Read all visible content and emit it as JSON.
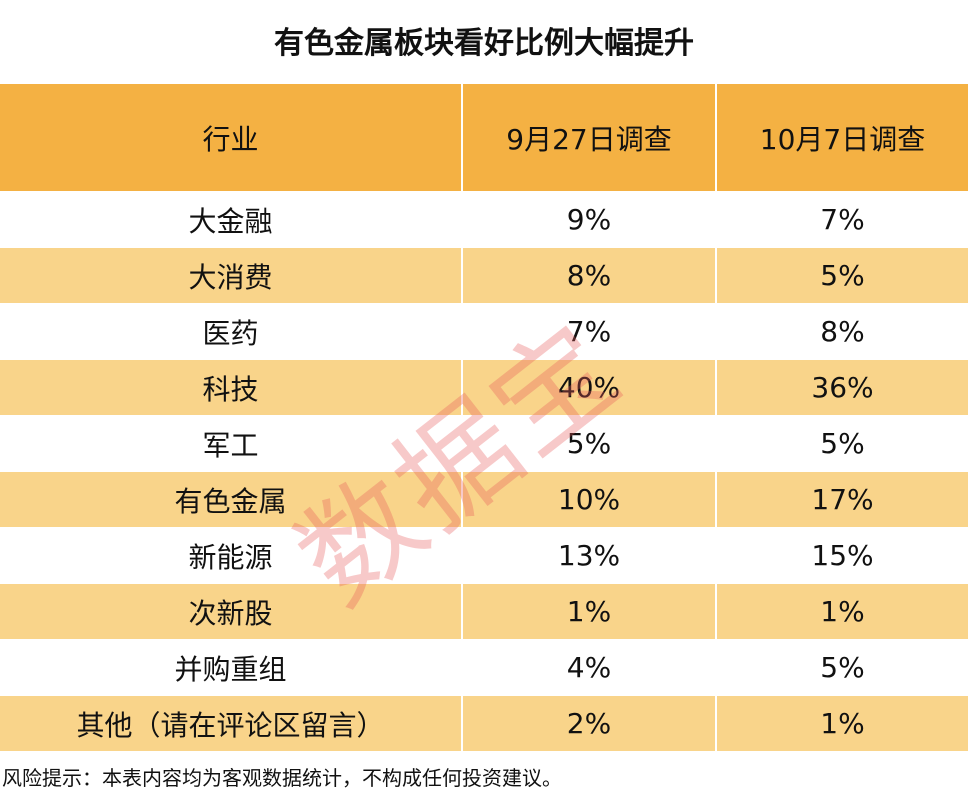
{
  "title": "有色金属板块看好比例大幅提升",
  "table": {
    "header": [
      "行业",
      "9月27日调查",
      "10月7日调查"
    ],
    "rows": [
      [
        "大金融",
        "9%",
        "7%"
      ],
      [
        "大消费",
        "8%",
        "5%"
      ],
      [
        "医药",
        "7%",
        "8%"
      ],
      [
        "科技",
        "40%",
        "36%"
      ],
      [
        "军工",
        "5%",
        "5%"
      ],
      [
        "有色金属",
        "10%",
        "17%"
      ],
      [
        "新能源",
        "13%",
        "15%"
      ],
      [
        "次新股",
        "1%",
        "1%"
      ],
      [
        "并购重组",
        "4%",
        "5%"
      ],
      [
        "其他（请在评论区留言）",
        "2%",
        "1%"
      ]
    ]
  },
  "watermark": "数据宝",
  "footnote": "风险提示：本表内容均为客观数据统计，不构成任何投资建议。"
}
